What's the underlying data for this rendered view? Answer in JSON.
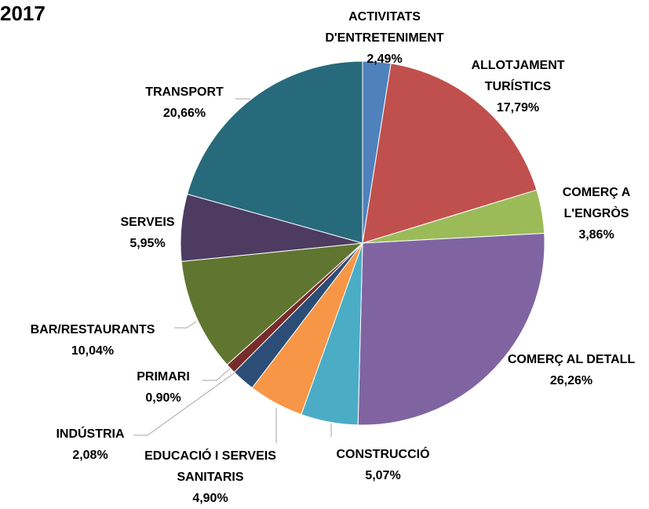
{
  "chart_data": {
    "type": "pie",
    "title": "2017",
    "categories": [
      "ACTIVITATS D'ENTRETENIMENT",
      "ALLOTJAMENT TURÍSTICS",
      "COMERÇ A L'ENGRÒS",
      "COMERÇ AL DETALL",
      "CONSTRUCCIÓ",
      "EDUCACIÓ I SERVEIS SANITARIS",
      "INDÚSTRIA",
      "PRIMARI",
      "BAR/RESTAURANTS",
      "SERVEIS",
      "TRANSPORT"
    ],
    "values": [
      2.49,
      17.79,
      3.86,
      26.26,
      5.07,
      4.9,
      2.08,
      0.9,
      10.04,
      5.95,
      20.66
    ],
    "value_labels": [
      "2,49%",
      "17,79%",
      "3,86%",
      "26,26%",
      "5,07%",
      "4,90%",
      "2,08%",
      "0,90%",
      "10,04%",
      "5,95%",
      "20,66%"
    ],
    "colors": [
      "#4f81bd",
      "#c0504d",
      "#9bbb59",
      "#8064a2",
      "#4bacc6",
      "#f79646",
      "#2c4d75",
      "#772c2a",
      "#5f7530",
      "#4d3b62",
      "#276a7c"
    ]
  }
}
